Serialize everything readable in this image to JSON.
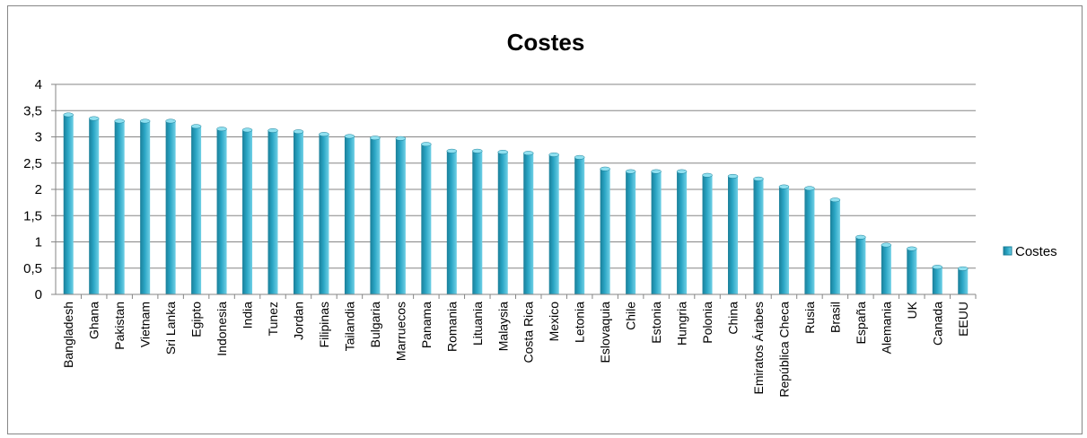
{
  "chart_data": {
    "type": "bar",
    "title": "Costes",
    "xlabel": "",
    "ylabel": "",
    "ylim": [
      0,
      4
    ],
    "yticks": [
      "0",
      "0,5",
      "1",
      "1,5",
      "2",
      "2,5",
      "3",
      "3,5",
      "4"
    ],
    "grid": true,
    "legend": "right",
    "bar_color": "#2aa5c4",
    "categories": [
      "Bangladesh",
      "Ghana",
      "Pakistan",
      "Vietnam",
      "Sri Lanka",
      "Egipto",
      "Indonesia",
      "India",
      "Tunez",
      "Jordan",
      "Filipinas",
      "Tailandia",
      "Bulgaria",
      "Marruecos",
      "Panama",
      "Romania",
      "Lituania",
      "Malaysia",
      "Costa Rica",
      "Mexico",
      "Letonia",
      "Eslovaquia",
      "Chile",
      "Estonia",
      "Hungria",
      "Polonia",
      "China",
      "Emiratos Árabes",
      "República Checa",
      "Rusia",
      "Brasil",
      "España",
      "Alemania",
      "UK",
      "Canada",
      "EEUU"
    ],
    "series": [
      {
        "name": "Costes",
        "values": [
          3.42,
          3.35,
          3.3,
          3.3,
          3.3,
          3.2,
          3.15,
          3.13,
          3.12,
          3.1,
          3.05,
          3.01,
          2.98,
          2.97,
          2.86,
          2.73,
          2.73,
          2.71,
          2.69,
          2.66,
          2.61,
          2.39,
          2.34,
          2.34,
          2.34,
          2.27,
          2.25,
          2.2,
          2.05,
          2.02,
          1.8,
          1.09,
          0.94,
          0.87,
          0.52,
          0.49
        ]
      }
    ]
  }
}
